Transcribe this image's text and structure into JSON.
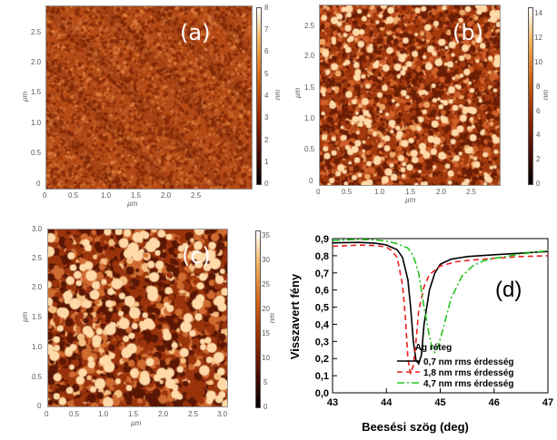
{
  "panels": [
    {
      "label": "(a)",
      "x_unit": "µm",
      "y_unit": "µm",
      "cbar_unit": "nm",
      "x_ticks": [
        "0",
        "0.5",
        "1.0",
        "1.5",
        "2.0",
        "2.5"
      ],
      "y_ticks": [
        "0",
        "0.5",
        "1.0",
        "1.5",
        "2.0",
        "2.5"
      ],
      "cbar_ticks": [
        "0",
        "1",
        "2",
        "3",
        "4",
        "5",
        "6",
        "7",
        "8"
      ],
      "colors": [
        "#8a2e0a",
        "#b54b17",
        "#c8632a",
        "#d97a3a"
      ]
    },
    {
      "label": "(b)",
      "x_unit": "µm",
      "y_unit": "µm",
      "cbar_unit": "nm",
      "x_ticks": [
        "0",
        "0.5",
        "1.0",
        "1.5",
        "2.0",
        "2.5"
      ],
      "y_ticks": [
        "0",
        "0.5",
        "1.0",
        "1.5",
        "2.0",
        "2.5"
      ],
      "cbar_ticks": [
        "0",
        "2",
        "4",
        "6",
        "8",
        "10",
        "12",
        "14"
      ],
      "colors": [
        "#6b1e05",
        "#a33a0e",
        "#d0602a",
        "#f0a868"
      ]
    },
    {
      "label": "(c)",
      "x_unit": "µm",
      "y_unit": "µm",
      "cbar_unit": "nm",
      "x_ticks": [
        "0",
        "0.5",
        "1.0",
        "1.5",
        "2.0",
        "2.5",
        "3.0"
      ],
      "y_ticks": [
        "0",
        "0.5",
        "1.0",
        "1.5",
        "2.0",
        "2.5",
        "3.0"
      ],
      "cbar_ticks": [
        "0",
        "5",
        "10",
        "15",
        "20",
        "25",
        "30",
        "35"
      ],
      "colors": [
        "#5a1704",
        "#9a340c",
        "#cf6a30",
        "#f6c084"
      ]
    }
  ],
  "chart_data": {
    "type": "line",
    "panel_label": "(d)",
    "xlabel": "Beesési szög (deg)",
    "ylabel": "Visszavert fény",
    "xlim": [
      43,
      47
    ],
    "ylim": [
      0.0,
      0.9
    ],
    "x_ticks": [
      "43",
      "44",
      "45",
      "46",
      "47"
    ],
    "y_ticks": [
      "0,0",
      "0,1",
      "0,2",
      "0,3",
      "0,4",
      "0,5",
      "0,6",
      "0,7",
      "0,8",
      "0,9"
    ],
    "legend_title": "Ag réteg",
    "legend_position": "bottom-right",
    "series": [
      {
        "name": "0,7 nm rms érdesség",
        "color": "#000000",
        "dash": "solid",
        "points": [
          [
            43.0,
            0.875
          ],
          [
            43.5,
            0.878
          ],
          [
            43.8,
            0.873
          ],
          [
            44.0,
            0.863
          ],
          [
            44.2,
            0.835
          ],
          [
            44.3,
            0.79
          ],
          [
            44.4,
            0.66
          ],
          [
            44.45,
            0.5
          ],
          [
            44.5,
            0.3
          ],
          [
            44.55,
            0.19
          ],
          [
            44.6,
            0.17
          ],
          [
            44.65,
            0.22
          ],
          [
            44.7,
            0.4
          ],
          [
            44.8,
            0.6
          ],
          [
            44.9,
            0.7
          ],
          [
            45.0,
            0.75
          ],
          [
            45.2,
            0.78
          ],
          [
            45.5,
            0.795
          ],
          [
            46.0,
            0.806
          ],
          [
            46.5,
            0.815
          ],
          [
            47.0,
            0.825
          ]
        ]
      },
      {
        "name": "1,8 nm rms érdesség",
        "color": "#e8201c",
        "dash": "dashed",
        "points": [
          [
            43.0,
            0.855
          ],
          [
            43.5,
            0.862
          ],
          [
            43.8,
            0.86
          ],
          [
            44.0,
            0.85
          ],
          [
            44.1,
            0.83
          ],
          [
            44.2,
            0.79
          ],
          [
            44.3,
            0.63
          ],
          [
            44.35,
            0.45
          ],
          [
            44.4,
            0.2
          ],
          [
            44.45,
            0.11
          ],
          [
            44.5,
            0.16
          ],
          [
            44.55,
            0.3
          ],
          [
            44.6,
            0.48
          ],
          [
            44.7,
            0.62
          ],
          [
            44.8,
            0.69
          ],
          [
            45.0,
            0.74
          ],
          [
            45.3,
            0.765
          ],
          [
            45.6,
            0.775
          ],
          [
            46.0,
            0.785
          ],
          [
            46.5,
            0.795
          ],
          [
            47.0,
            0.8
          ]
        ]
      },
      {
        "name": "4,7 nm rms érdesség",
        "color": "#28c21e",
        "dash": "dashdot",
        "points": [
          [
            43.0,
            0.89
          ],
          [
            43.5,
            0.895
          ],
          [
            43.8,
            0.892
          ],
          [
            44.0,
            0.885
          ],
          [
            44.2,
            0.87
          ],
          [
            44.4,
            0.845
          ],
          [
            44.5,
            0.8
          ],
          [
            44.6,
            0.7
          ],
          [
            44.7,
            0.5
          ],
          [
            44.8,
            0.33
          ],
          [
            44.85,
            0.26
          ],
          [
            44.9,
            0.235
          ],
          [
            44.95,
            0.26
          ],
          [
            45.05,
            0.37
          ],
          [
            45.2,
            0.55
          ],
          [
            45.4,
            0.68
          ],
          [
            45.6,
            0.74
          ],
          [
            45.8,
            0.77
          ],
          [
            46.0,
            0.785
          ],
          [
            46.5,
            0.81
          ],
          [
            47.0,
            0.83
          ]
        ]
      }
    ]
  }
}
